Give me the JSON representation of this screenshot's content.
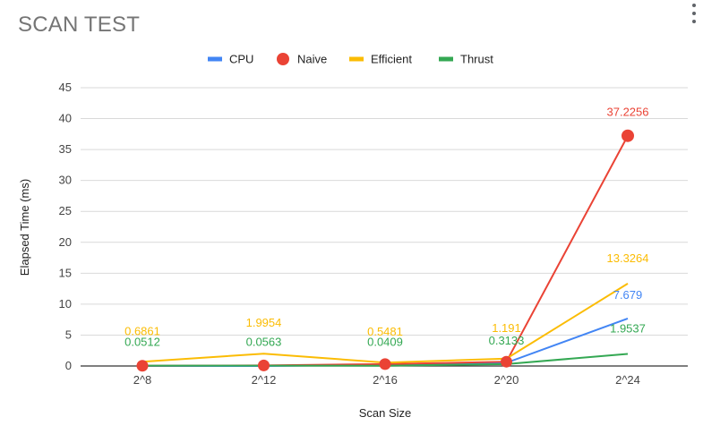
{
  "title": "SCAN TEST",
  "menu_icon": "more-vert-icon",
  "chart_data": {
    "type": "line",
    "title": "SCAN TEST",
    "xlabel": "Scan Size",
    "ylabel": "Elapsed Time (ms)",
    "categories": [
      "2^8",
      "2^12",
      "2^16",
      "2^20",
      "2^24"
    ],
    "ylim": [
      0,
      45
    ],
    "yticks": [
      0,
      5,
      10,
      15,
      20,
      25,
      30,
      35,
      40,
      45
    ],
    "grid": true,
    "legend_position": "top",
    "series": [
      {
        "name": "CPU",
        "color": "#4285f4",
        "marker": "none",
        "values": [
          0.0005,
          0.0066,
          0.2006,
          0.5157,
          7.679
        ],
        "labels": [
          null,
          null,
          null,
          null,
          "7.679"
        ]
      },
      {
        "name": "Naive",
        "color": "#ea4335",
        "marker": "circle",
        "values": [
          0.0331,
          0.0952,
          0.3031,
          0.6963,
          37.2256
        ],
        "labels": [
          null,
          null,
          null,
          null,
          "37.2256"
        ]
      },
      {
        "name": "Efficient",
        "color": "#fbbc04",
        "marker": "none",
        "values": [
          0.6861,
          1.9954,
          0.5481,
          1.191,
          13.3264
        ],
        "labels": [
          "0.6861",
          "1.9954",
          "0.5481",
          "1.191",
          "13.3264"
        ]
      },
      {
        "name": "Thrust",
        "color": "#34a853",
        "marker": "none",
        "values": [
          0.0512,
          0.0563,
          0.0409,
          0.3133,
          1.9537
        ],
        "labels": [
          "0.0512",
          "0.0563",
          "0.0409",
          "0.3133",
          "1.9537"
        ]
      }
    ]
  }
}
